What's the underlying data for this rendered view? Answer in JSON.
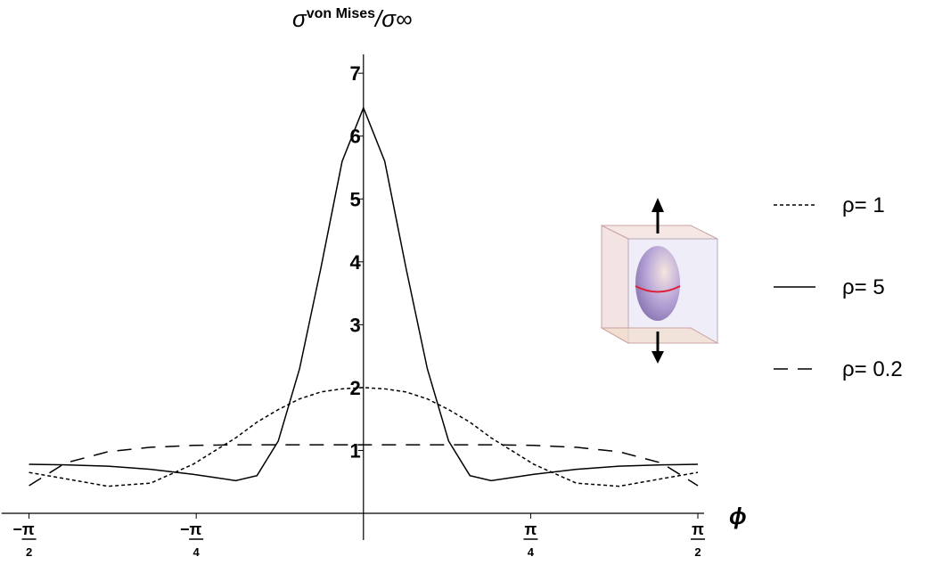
{
  "chart_data": {
    "type": "line",
    "ylabel": {
      "base": "σ",
      "sup": "von Mises",
      "rest": "/σ∞"
    },
    "xlabel": "ϕ",
    "x": [
      -1.5708,
      -1.4,
      -1.2,
      -1.0,
      -0.8,
      -0.6,
      -0.5,
      -0.4,
      -0.3,
      -0.2,
      -0.1,
      0,
      0.1,
      0.2,
      0.3,
      0.4,
      0.5,
      0.6,
      0.8,
      1.0,
      1.2,
      1.4,
      1.5708
    ],
    "series": [
      {
        "name": "ρ= 1",
        "color": "#000000",
        "dash": "dotted",
        "values": [
          0.65,
          0.55,
          0.43,
          0.48,
          0.78,
          1.2,
          1.45,
          1.65,
          1.82,
          1.93,
          1.98,
          2.0,
          1.98,
          1.93,
          1.82,
          1.65,
          1.45,
          1.2,
          0.78,
          0.48,
          0.43,
          0.55,
          0.65
        ]
      },
      {
        "name": "ρ= 5",
        "color": "#000000",
        "dash": "solid",
        "values": [
          0.78,
          0.77,
          0.75,
          0.7,
          0.62,
          0.52,
          0.6,
          1.15,
          2.3,
          3.9,
          5.6,
          6.45,
          5.6,
          3.9,
          2.3,
          1.15,
          0.6,
          0.52,
          0.62,
          0.7,
          0.75,
          0.77,
          0.78
        ]
      },
      {
        "name": "ρ= 0.2",
        "color": "#000000",
        "dash": "dashed",
        "values": [
          0.44,
          0.8,
          0.98,
          1.05,
          1.08,
          1.09,
          1.09,
          1.09,
          1.09,
          1.09,
          1.09,
          1.09,
          1.09,
          1.09,
          1.09,
          1.09,
          1.09,
          1.09,
          1.08,
          1.05,
          0.98,
          0.8,
          0.44
        ]
      }
    ],
    "xlim": [
      -1.7,
      1.6
    ],
    "ylim": [
      0,
      7.3
    ],
    "xticks": [
      {
        "value": -1.5708,
        "label": "−π/2"
      },
      {
        "value": -0.7854,
        "label": "−π/4"
      },
      {
        "value": 0.7854,
        "label": "π/4"
      },
      {
        "value": 1.5708,
        "label": "π/2"
      }
    ],
    "yticks": [
      1,
      2,
      3,
      4,
      5,
      6,
      7
    ],
    "grid": false,
    "legend": "right"
  }
}
